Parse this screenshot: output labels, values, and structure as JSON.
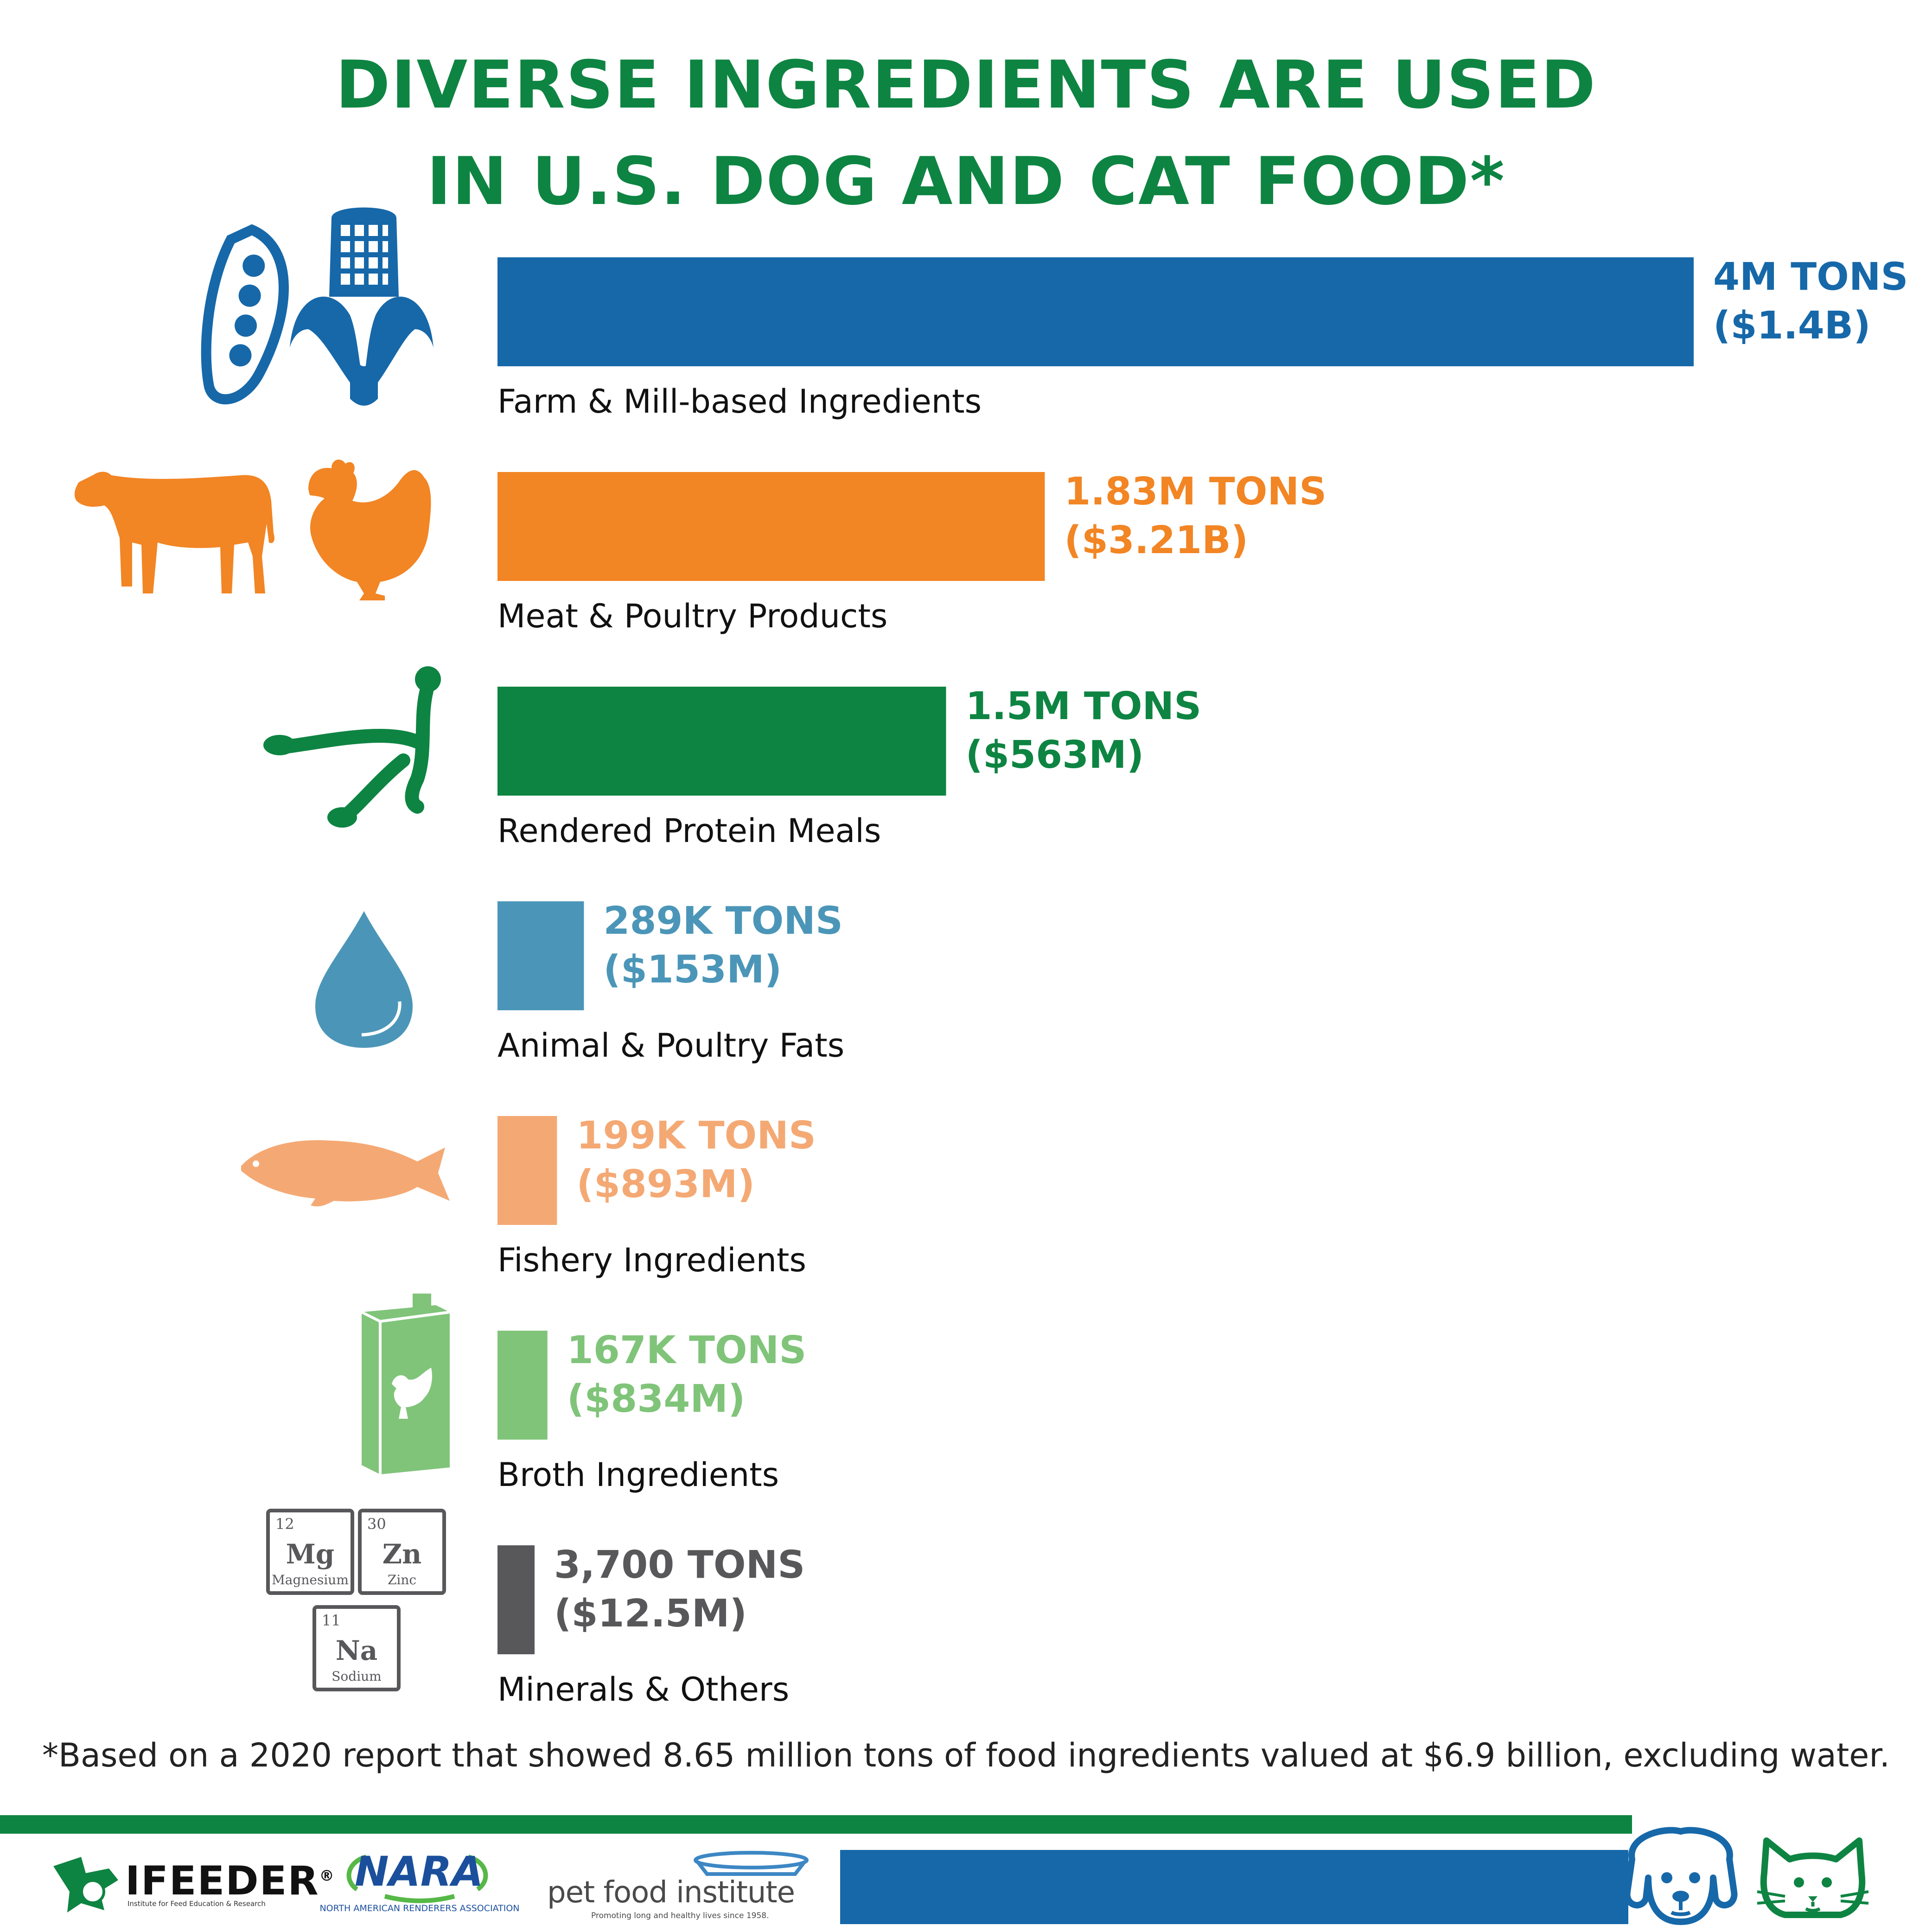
{
  "title": {
    "line1": "DIVERSE INGREDIENTS ARE USED",
    "line2": "IN U.S. DOG AND CAT FOOD*"
  },
  "chart_data": {
    "type": "bar",
    "orientation": "horizontal",
    "unit": "tons",
    "categories": [
      "Farm & Mill-based Ingredients",
      "Meat & Poultry Products",
      "Rendered Protein Meals",
      "Animal & Poultry Fats",
      "Fishery Ingredients",
      "Broth Ingredients",
      "Minerals & Others"
    ],
    "values": [
      4000000,
      1830000,
      1500000,
      289000,
      199000,
      167000,
      3700
    ],
    "value_labels": [
      "4M TONS",
      "1.83M TONS",
      "1.5M TONS",
      "289K TONS",
      "199K TONS",
      "167K TONS",
      "3,700 TONS"
    ],
    "value_sublabels": [
      "($1.4B)",
      "($3.21B)",
      "($563M)",
      "($153M)",
      "($893M)",
      "($834M)",
      "($12.5M)"
    ],
    "colors": [
      "#1668a9",
      "#f28524",
      "#0e8442",
      "#4b96b8",
      "#f4a974",
      "#80c47a",
      "#58585b"
    ],
    "icons": [
      "pea-pod-and-corn-icon",
      "cow-and-chicken-icon",
      "wishbone-icon",
      "water-drop-icon",
      "fish-icon",
      "broth-carton-icon",
      "mineral-elements-icon"
    ],
    "grid": false,
    "legend": "none"
  },
  "mineral_icons": [
    {
      "number": "12",
      "symbol": "Mg",
      "name": "Magnesium"
    },
    {
      "number": "30",
      "symbol": "Zn",
      "name": "Zinc"
    },
    {
      "number": "11",
      "symbol": "Na",
      "name": "Sodium"
    }
  ],
  "footnote": "*Based on a 2020 report that showed 8.65 million tons of food ingredients valued at $6.9 billion, excluding water.",
  "footer": {
    "ifeeder": {
      "name": "IFEEDER",
      "mark": "®",
      "tagline": "Institute for Feed Education & Research"
    },
    "nara": {
      "name": "NARA",
      "tagline": "NORTH AMERICAN RENDERERS ASSOCIATION"
    },
    "pfi": {
      "name": "pet food institute",
      "tagline": "Promoting long and healthy lives since 1958."
    },
    "pet_icons": [
      "dog-face-icon",
      "cat-face-icon"
    ]
  }
}
